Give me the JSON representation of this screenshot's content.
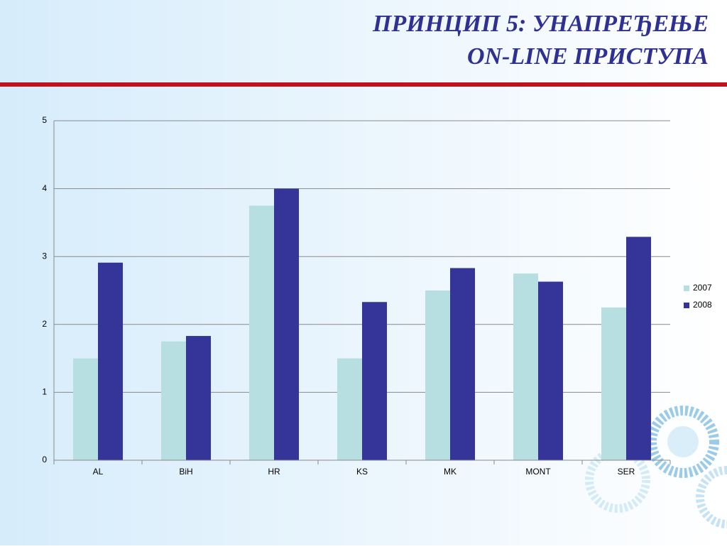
{
  "chart_data": {
    "type": "bar",
    "title": [
      "ПРИНЦИП 5: УНАПРЕЂЕЊЕ",
      "ON-LINE ПРИСТУПА"
    ],
    "categories": [
      "AL",
      "BiH",
      "HR",
      "KS",
      "MK",
      "MONT",
      "SER"
    ],
    "series": [
      {
        "name": "2007",
        "color": "#b7dfe1",
        "values": [
          1.5,
          1.75,
          3.75,
          1.5,
          2.5,
          2.75,
          2.25
        ]
      },
      {
        "name": "2008",
        "color": "#343499",
        "values": [
          2.91,
          1.83,
          4.0,
          2.33,
          2.83,
          2.63,
          3.29
        ]
      }
    ],
    "ylim": [
      0,
      5
    ],
    "yticks": [
      0,
      1,
      2,
      3,
      4,
      5
    ],
    "grid": true,
    "legend": "right"
  }
}
